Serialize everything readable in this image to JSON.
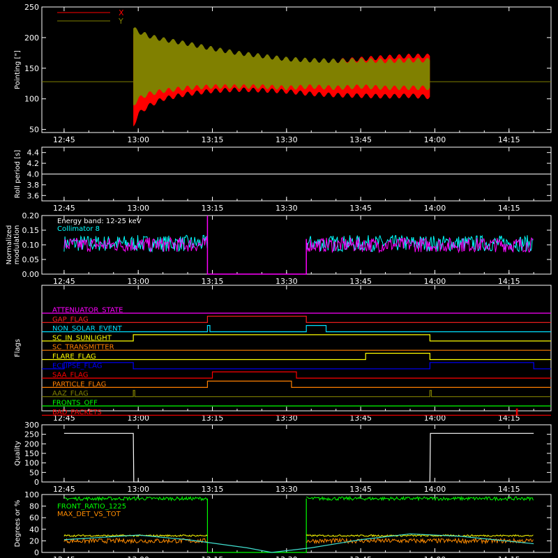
{
  "chart_data": [
    {
      "id": "pointing",
      "type": "area",
      "ylabel": "Pointing [\"]",
      "ylim": [
        45,
        250
      ],
      "yticks": [
        50,
        100,
        150,
        200,
        250
      ],
      "x_tick_labels": [
        "12:45",
        "13:00",
        "13:15",
        "13:30",
        "13:45",
        "14:00",
        "14:15"
      ],
      "center_line": 128,
      "legend": [
        {
          "name": "X",
          "color": "#ff0000"
        },
        {
          "name": "Y",
          "color": "#808000"
        }
      ],
      "series": [
        {
          "name": "X",
          "color": "#ff0000",
          "envelope": {
            "t": [
              "12:59",
              "13:00",
              "13:02",
              "13:05",
              "13:10",
              "13:15",
              "13:20",
              "13:25",
              "13:30",
              "13:35",
              "13:40",
              "13:45",
              "13:50",
              "13:55",
              "13:59"
            ],
            "upper": [
              205,
              200,
              190,
              183,
              174,
              165,
              160,
              158,
              156,
              160,
              162,
              165,
              168,
              170,
              170
            ],
            "lower": [
              55,
              75,
              88,
              100,
              108,
              113,
              115,
              114,
              112,
              108,
              106,
              105,
              104,
              105,
              103
            ]
          }
        },
        {
          "name": "Y",
          "color": "#808000",
          "envelope": {
            "t": [
              "12:59",
              "13:00",
              "13:02",
              "13:05",
              "13:10",
              "13:15",
              "13:20",
              "13:25",
              "13:30",
              "13:35",
              "13:40",
              "13:45",
              "13:50",
              "13:55",
              "13:59"
            ],
            "upper": [
              215,
              210,
              203,
              197,
              190,
              182,
              175,
              170,
              165,
              163,
              162,
              163,
              162,
              163,
              163
            ],
            "lower": [
              90,
              100,
              108,
              113,
              118,
              120,
              120,
              120,
              118,
              120,
              118,
              120,
              118,
              118,
              118
            ]
          }
        }
      ]
    },
    {
      "id": "roll",
      "type": "line",
      "ylabel": "Roll period [s]",
      "ylim": [
        3.5,
        4.5
      ],
      "yticks": [
        3.6,
        3.8,
        4.0,
        4.2,
        4.4
      ],
      "x_tick_labels": [
        "12:45",
        "13:00",
        "13:15",
        "13:30",
        "13:45",
        "14:00",
        "14:15"
      ],
      "series": [
        {
          "color": "#ffffff",
          "value": 4.0
        }
      ]
    },
    {
      "id": "modulation",
      "type": "line",
      "ylabel": "Normalized modulation",
      "ylim": [
        0.0,
        0.2
      ],
      "yticks": [
        0.0,
        0.05,
        0.1,
        0.15,
        0.2
      ],
      "ytick_labels": [
        "0.00",
        "0.05",
        "0.10",
        "0.15",
        "0.20"
      ],
      "x_tick_labels": [
        "12:45",
        "13:00",
        "13:15",
        "13:30",
        "13:45",
        "14:00",
        "14:15"
      ],
      "annotations": [
        "Energy band: 12-25 keV",
        "Collimator 8"
      ],
      "series": [
        {
          "color": "#00ffff",
          "segments": [
            [
              "12:45",
              "13:14"
            ],
            [
              "13:34",
              "14:20"
            ]
          ],
          "mean": 0.105,
          "spread": 0.028
        },
        {
          "color": "#ff00ff",
          "segments": [
            [
              "12:45",
              "13:14"
            ],
            [
              "13:34",
              "14:20"
            ]
          ],
          "mean": 0.1,
          "spread": 0.025,
          "gap": [
            "13:14",
            "13:34"
          ]
        }
      ]
    },
    {
      "id": "flags",
      "type": "line",
      "ylabel": "Flags",
      "x_tick_labels": [
        "12:45",
        "13:00",
        "13:15",
        "13:30",
        "13:45",
        "14:00",
        "14:15"
      ],
      "series": [
        {
          "name": "ATTENUATOR_STATE",
          "color": "#ff00ff",
          "on": []
        },
        {
          "name": "GAP_FLAG",
          "color": "#ff2020",
          "on": [
            [
              "13:14",
              "13:34"
            ]
          ]
        },
        {
          "name": "NON_SOLAR_EVENT",
          "color": "#00e0ff",
          "on": [
            [
              "13:14",
              "13:14.5"
            ],
            [
              "13:34",
              "13:38"
            ]
          ]
        },
        {
          "name": "SC_IN_SUNLIGHT",
          "color": "#ffff00",
          "on": [
            [
              "12:59",
              "13:59"
            ]
          ]
        },
        {
          "name": "SC_TRANSMITTER",
          "color": "#ff7f00",
          "on": []
        },
        {
          "name": "FLARE_FLAG",
          "color": "#ffff00",
          "on": [
            [
              "13:46",
              "13:59"
            ]
          ]
        },
        {
          "name": "ECLIPSE_FLAG",
          "color": "#0000ff",
          "on": [
            [
              "12:45",
              "12:59"
            ],
            [
              "13:59",
              "14:20"
            ]
          ]
        },
        {
          "name": "SAA_FLAG",
          "color": "#ff0000",
          "on": [
            [
              "13:15",
              "13:32"
            ]
          ]
        },
        {
          "name": "PARTICLE_FLAG",
          "color": "#ff7f00",
          "on": [
            [
              "13:14",
              "13:31"
            ]
          ]
        },
        {
          "name": "AAZ_FLAG",
          "color": "#808000",
          "on": [
            [
              "12:59",
              "12:59.3"
            ],
            [
              "13:59",
              "13:59.3"
            ]
          ]
        },
        {
          "name": "FRONTS_OFF",
          "color": "#00ff00",
          "on": []
        },
        {
          "name": "BAD_PACKETS",
          "color": "#ff0000",
          "on": [
            [
              "14:16.5",
              "14:16.7"
            ]
          ]
        }
      ]
    },
    {
      "id": "quality",
      "type": "line",
      "ylabel": "Quality",
      "ylim": [
        0,
        300
      ],
      "yticks": [
        0,
        50,
        100,
        150,
        200,
        250,
        300
      ],
      "x_tick_labels": [
        "12:45",
        "13:00",
        "13:15",
        "13:30",
        "13:45",
        "14:00",
        "14:15"
      ],
      "series": [
        {
          "color": "#ffffff",
          "points": [
            [
              "12:45",
              255
            ],
            [
              "12:59",
              255
            ],
            [
              "12:59.1",
              0
            ],
            [
              "13:59",
              0
            ],
            [
              "13:59.1",
              255
            ],
            [
              "14:20",
              255
            ]
          ]
        }
      ]
    },
    {
      "id": "degrees",
      "type": "line",
      "ylabel": "Degrees or %",
      "ylim": [
        0,
        100
      ],
      "yticks": [
        0,
        20,
        40,
        60,
        80,
        100
      ],
      "x_tick_labels": [
        "12:45",
        "13:00",
        "13:15",
        "13:30",
        "13:45",
        "14:00",
        "14:15"
      ],
      "legend": [
        {
          "name": "FRONT_RATIO_1225",
          "color": "#00ff00"
        },
        {
          "name": "MAX_DET_VS_TOT",
          "color": "#ff8c00"
        }
      ],
      "series": [
        {
          "name": "FRONT_RATIO_1225",
          "color": "#00ff00",
          "mean": 93,
          "spread": 3,
          "segments": [
            [
              "12:45",
              "13:14"
            ],
            [
              "13:34",
              "14:20"
            ]
          ],
          "gap_value": 0
        },
        {
          "name": "MAX_DET_VS_TOT",
          "color": "#ff8c00",
          "mean": 20,
          "spread": 4,
          "segments": [
            [
              "12:45",
              "13:14"
            ],
            [
              "13:34",
              "14:20"
            ]
          ]
        },
        {
          "color": "#ffff00",
          "mean": 29,
          "spread": 1.5,
          "segments": [
            [
              "12:45",
              "13:14"
            ],
            [
              "13:34",
              "14:20"
            ]
          ]
        },
        {
          "color": "#40e0d0",
          "points": [
            [
              "12:45",
              22
            ],
            [
              "13:00",
              30
            ],
            [
              "13:10",
              22
            ],
            [
              "13:22",
              8
            ],
            [
              "13:27",
              0
            ],
            [
              "13:35",
              8
            ],
            [
              "13:45",
              22
            ],
            [
              "13:55",
              32
            ],
            [
              "14:05",
              28
            ],
            [
              "14:20",
              15
            ]
          ]
        }
      ]
    }
  ]
}
